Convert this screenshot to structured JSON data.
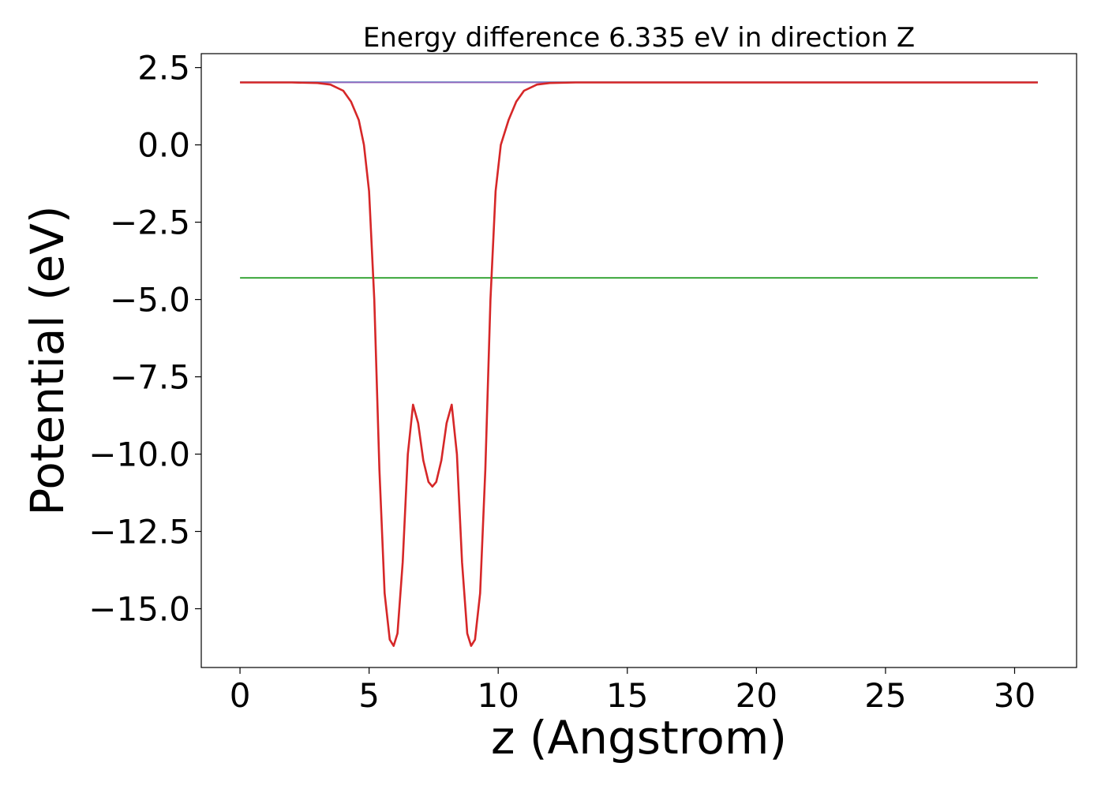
{
  "chart_data": {
    "type": "line",
    "title": "Energy difference 6.335 eV in direction Z",
    "xlabel": "z (Angstrom)",
    "ylabel": "Potential (eV)",
    "xlim": [
      -1.5,
      32.4
    ],
    "ylim": [
      -16.9,
      2.95
    ],
    "xticks": [
      0,
      5,
      10,
      15,
      20,
      25,
      30
    ],
    "xtick_labels": [
      "0",
      "5",
      "10",
      "15",
      "20",
      "25",
      "30"
    ],
    "yticks": [
      2.5,
      0.0,
      -2.5,
      -5.0,
      -7.5,
      -10.0,
      -12.5,
      -15.0
    ],
    "ytick_labels": [
      "2.5",
      "0.0",
      "−2.5",
      "−5.0",
      "−7.5",
      "−10.0",
      "−12.5",
      "−15.0"
    ],
    "grid": false,
    "series": [
      {
        "role": "vacuum-level",
        "color": "#1f77b4",
        "x": [
          0,
          30.9
        ],
        "y": [
          2.03,
          2.03
        ]
      },
      {
        "role": "fermi-level",
        "color": "#2ca02c",
        "x": [
          0,
          30.9
        ],
        "y": [
          -4.3,
          -4.3
        ]
      },
      {
        "role": "macroscopic-average",
        "color": "#9467bd",
        "x": [
          0,
          30.9
        ],
        "y": [
          2.02,
          2.02
        ]
      },
      {
        "role": "planar-average-potential",
        "color": "#d62728",
        "x": [
          0,
          2.0,
          3.0,
          3.5,
          4.0,
          4.3,
          4.6,
          4.8,
          5.0,
          5.2,
          5.4,
          5.6,
          5.8,
          5.95,
          6.1,
          6.3,
          6.5,
          6.7,
          6.9,
          7.1,
          7.3,
          7.45,
          7.6,
          7.8,
          8.0,
          8.2,
          8.4,
          8.6,
          8.8,
          8.95,
          9.1,
          9.3,
          9.5,
          9.7,
          9.9,
          10.1,
          10.4,
          10.7,
          11.0,
          11.5,
          12.0,
          13.0,
          15.0,
          20.0,
          25.0,
          30.9
        ],
        "y": [
          2.02,
          2.02,
          2.0,
          1.95,
          1.75,
          1.4,
          0.8,
          0.0,
          -1.5,
          -5.0,
          -10.5,
          -14.5,
          -16.0,
          -16.2,
          -15.8,
          -13.5,
          -10.0,
          -8.4,
          -9.0,
          -10.2,
          -10.9,
          -11.05,
          -10.9,
          -10.2,
          -9.0,
          -8.4,
          -10.0,
          -13.5,
          -15.8,
          -16.2,
          -16.0,
          -14.5,
          -10.5,
          -5.0,
          -1.5,
          0.0,
          0.8,
          1.4,
          1.75,
          1.95,
          2.0,
          2.02,
          2.02,
          2.02,
          2.02,
          2.02
        ]
      }
    ]
  }
}
